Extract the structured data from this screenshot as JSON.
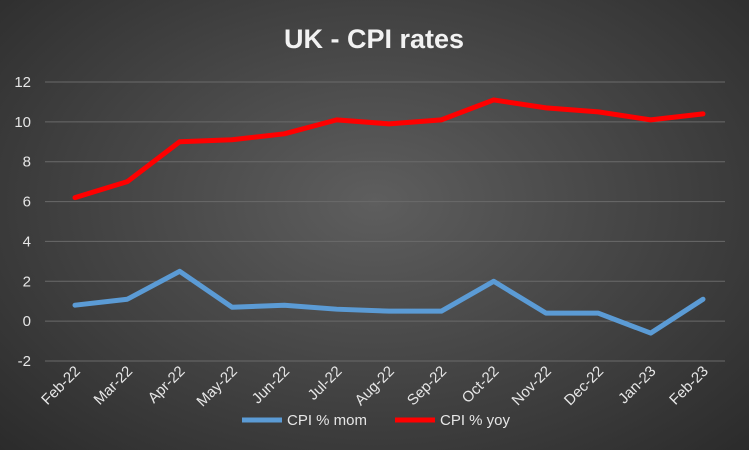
{
  "chart_data": {
    "type": "line",
    "title": "UK - CPI rates",
    "xlabel": "",
    "ylabel": "",
    "categories": [
      "Feb-22",
      "Mar-22",
      "Apr-22",
      "May-22",
      "Jun-22",
      "Jul-22",
      "Aug-22",
      "Sep-22",
      "Oct-22",
      "Nov-22",
      "Dec-22",
      "Jan-23",
      "Feb-23"
    ],
    "ylim": [
      -2,
      12
    ],
    "yticks": [
      -2,
      0,
      2,
      4,
      6,
      8,
      10,
      12
    ],
    "grid": true,
    "legend_position": "bottom",
    "series": [
      {
        "name": "CPI % mom",
        "color": "#5b9bd5",
        "values": [
          0.8,
          1.1,
          2.5,
          0.7,
          0.8,
          0.6,
          0.5,
          0.5,
          2.0,
          0.4,
          0.4,
          -0.6,
          1.1
        ]
      },
      {
        "name": "CPI % yoy",
        "color": "#ff0000",
        "values": [
          6.2,
          7.0,
          9.0,
          9.1,
          9.4,
          10.1,
          9.9,
          10.1,
          11.1,
          10.7,
          10.5,
          10.1,
          10.4
        ]
      }
    ]
  }
}
